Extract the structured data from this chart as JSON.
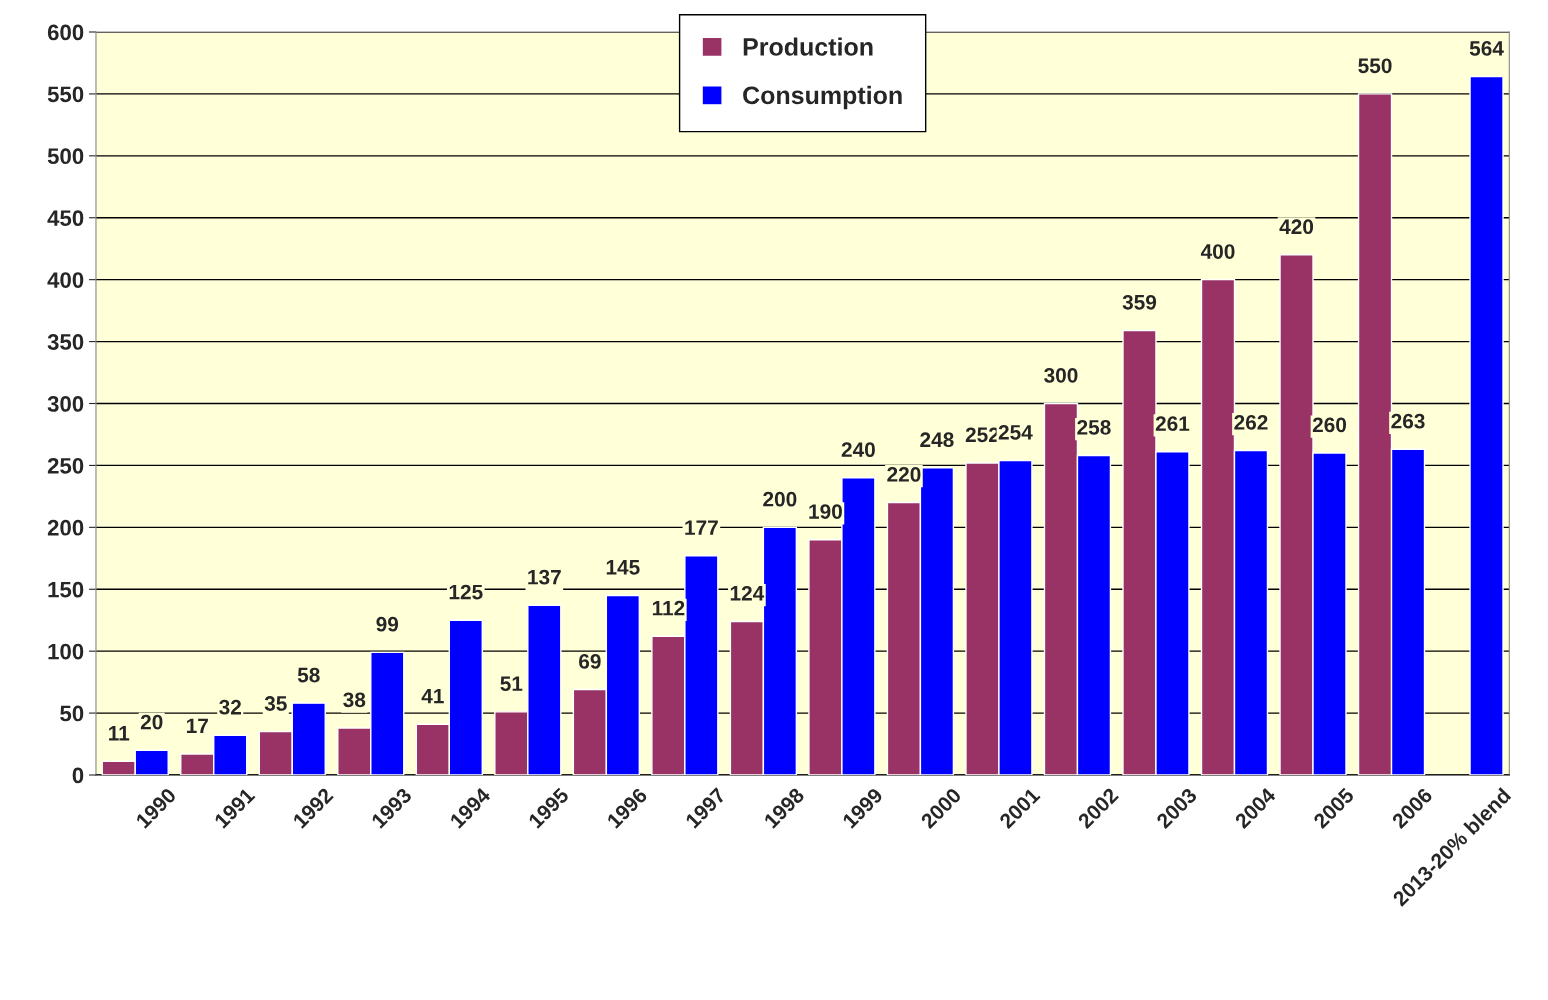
{
  "chart_data": {
    "type": "bar",
    "categories": [
      "1990",
      "1991",
      "1992",
      "1993",
      "1994",
      "1995",
      "1996",
      "1997",
      "1998",
      "1999",
      "2000",
      "2001",
      "2002",
      "2003",
      "2004",
      "2005",
      "2006",
      "2013-20% blend"
    ],
    "series": [
      {
        "name": "Production",
        "color": "#993366",
        "values": [
          11,
          17,
          35,
          38,
          41,
          51,
          69,
          112,
          124,
          190,
          220,
          252,
          300,
          359,
          400,
          420,
          550,
          null
        ]
      },
      {
        "name": "Consumption",
        "color": "#0000ff",
        "values": [
          20,
          32,
          58,
          99,
          125,
          137,
          145,
          177,
          200,
          240,
          248,
          254,
          258,
          261,
          262,
          260,
          263,
          564
        ]
      }
    ],
    "ylim": [
      0,
      600
    ],
    "yticks": [
      0,
      50,
      100,
      150,
      200,
      250,
      300,
      350,
      400,
      450,
      500,
      550,
      600
    ],
    "grid": "y",
    "legend": "top",
    "data_labels": true
  }
}
